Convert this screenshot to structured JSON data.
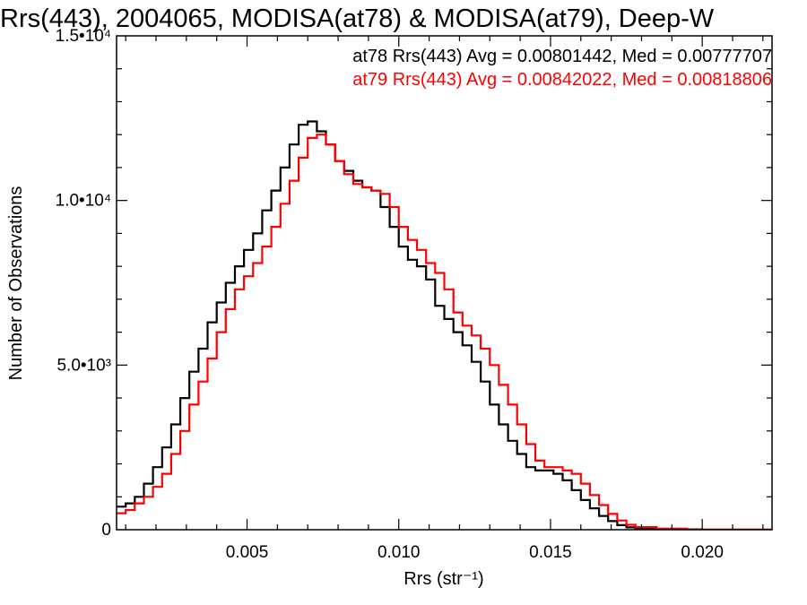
{
  "chart_data": {
    "type": "line",
    "title": "Rrs(443), 2004065, MODISA(at78) & MODISA(at79), Deep-W",
    "xlabel": "Rrs (str⁻¹)",
    "ylabel": "Number of Observations",
    "xlim": [
      0.0007,
      0.0223
    ],
    "ylim": [
      0,
      15000
    ],
    "x_ticks": [
      {
        "value": 0.005,
        "label": "0.005"
      },
      {
        "value": 0.01,
        "label": "0.010"
      },
      {
        "value": 0.015,
        "label": "0.015"
      },
      {
        "value": 0.02,
        "label": "0.020"
      }
    ],
    "y_ticks": [
      {
        "value": 0,
        "label": "0"
      },
      {
        "value": 5000,
        "label": "5.0•10³"
      },
      {
        "value": 10000,
        "label": "1.0•10⁴"
      },
      {
        "value": 15000,
        "label": "1.5•10⁴"
      }
    ],
    "legend_position": "top-right",
    "grid": false,
    "series": [
      {
        "name": "at78",
        "color": "#000000",
        "legend_text": "at78 Rrs(443) Avg = 0.00801442, Med = 0.00777707",
        "points": [
          [
            0.0007,
            700
          ],
          [
            0.001,
            800
          ],
          [
            0.0013,
            1000
          ],
          [
            0.0016,
            1400
          ],
          [
            0.0019,
            1900
          ],
          [
            0.0022,
            2500
          ],
          [
            0.0025,
            3200
          ],
          [
            0.0028,
            4000
          ],
          [
            0.0031,
            4800
          ],
          [
            0.0034,
            5500
          ],
          [
            0.0037,
            6300
          ],
          [
            0.004,
            6900
          ],
          [
            0.0043,
            7500
          ],
          [
            0.0046,
            8000
          ],
          [
            0.0049,
            8500
          ],
          [
            0.0052,
            9000
          ],
          [
            0.0055,
            9700
          ],
          [
            0.0058,
            10300
          ],
          [
            0.0061,
            11000
          ],
          [
            0.0064,
            11700
          ],
          [
            0.0067,
            12300
          ],
          [
            0.007,
            12400
          ],
          [
            0.0073,
            12100
          ],
          [
            0.0076,
            11700
          ],
          [
            0.0079,
            11200
          ],
          [
            0.0082,
            10900
          ],
          [
            0.0085,
            10600
          ],
          [
            0.0088,
            10400
          ],
          [
            0.0091,
            10300
          ],
          [
            0.0094,
            9800
          ],
          [
            0.0097,
            9200
          ],
          [
            0.01,
            8600
          ],
          [
            0.0103,
            8200
          ],
          [
            0.0106,
            8000
          ],
          [
            0.0109,
            7600
          ],
          [
            0.0112,
            6800
          ],
          [
            0.0115,
            6400
          ],
          [
            0.0118,
            6000
          ],
          [
            0.0121,
            5600
          ],
          [
            0.0124,
            5100
          ],
          [
            0.0127,
            4500
          ],
          [
            0.013,
            3800
          ],
          [
            0.0133,
            3200
          ],
          [
            0.0136,
            2700
          ],
          [
            0.0139,
            2300
          ],
          [
            0.0142,
            1900
          ],
          [
            0.0145,
            1800
          ],
          [
            0.0148,
            1800
          ],
          [
            0.0151,
            1700
          ],
          [
            0.0154,
            1500
          ],
          [
            0.0157,
            1200
          ],
          [
            0.016,
            900
          ],
          [
            0.0163,
            650
          ],
          [
            0.0166,
            420
          ],
          [
            0.0169,
            260
          ],
          [
            0.0172,
            140
          ],
          [
            0.0175,
            70
          ],
          [
            0.0178,
            30
          ],
          [
            0.0185,
            10
          ],
          [
            0.02,
            0
          ],
          [
            0.0223,
            0
          ]
        ]
      },
      {
        "name": "at79",
        "color": "#ff0000",
        "legend_text": "at79 Rrs(443) Avg = 0.00842022, Med = 0.00818806",
        "points": [
          [
            0.0007,
            500
          ],
          [
            0.001,
            600
          ],
          [
            0.0013,
            800
          ],
          [
            0.0016,
            1000
          ],
          [
            0.0019,
            1300
          ],
          [
            0.0022,
            1700
          ],
          [
            0.0025,
            2300
          ],
          [
            0.0028,
            3000
          ],
          [
            0.0031,
            3800
          ],
          [
            0.0034,
            4500
          ],
          [
            0.0037,
            5200
          ],
          [
            0.004,
            6000
          ],
          [
            0.0043,
            6700
          ],
          [
            0.0046,
            7300
          ],
          [
            0.0049,
            7700
          ],
          [
            0.0052,
            8100
          ],
          [
            0.0055,
            8600
          ],
          [
            0.0058,
            9200
          ],
          [
            0.0061,
            9900
          ],
          [
            0.0064,
            10600
          ],
          [
            0.0067,
            11300
          ],
          [
            0.007,
            11900
          ],
          [
            0.0073,
            12000
          ],
          [
            0.0076,
            11700
          ],
          [
            0.0079,
            11200
          ],
          [
            0.0082,
            10800
          ],
          [
            0.0085,
            10500
          ],
          [
            0.0088,
            10400
          ],
          [
            0.0091,
            10300
          ],
          [
            0.0094,
            10200
          ],
          [
            0.0097,
            9800
          ],
          [
            0.01,
            9200
          ],
          [
            0.0103,
            8800
          ],
          [
            0.0106,
            8500
          ],
          [
            0.0109,
            8100
          ],
          [
            0.0112,
            7800
          ],
          [
            0.0115,
            7300
          ],
          [
            0.0118,
            6600
          ],
          [
            0.0121,
            6200
          ],
          [
            0.0124,
            5900
          ],
          [
            0.0127,
            5500
          ],
          [
            0.013,
            5000
          ],
          [
            0.0133,
            4400
          ],
          [
            0.0136,
            3800
          ],
          [
            0.0139,
            3200
          ],
          [
            0.0142,
            2600
          ],
          [
            0.0145,
            2100
          ],
          [
            0.0148,
            1900
          ],
          [
            0.0151,
            1900
          ],
          [
            0.0154,
            1800
          ],
          [
            0.0157,
            1700
          ],
          [
            0.016,
            1400
          ],
          [
            0.0163,
            1050
          ],
          [
            0.0166,
            750
          ],
          [
            0.0169,
            480
          ],
          [
            0.0172,
            280
          ],
          [
            0.0175,
            150
          ],
          [
            0.0178,
            80
          ],
          [
            0.0185,
            30
          ],
          [
            0.0195,
            5
          ],
          [
            0.0223,
            0
          ]
        ]
      }
    ]
  }
}
